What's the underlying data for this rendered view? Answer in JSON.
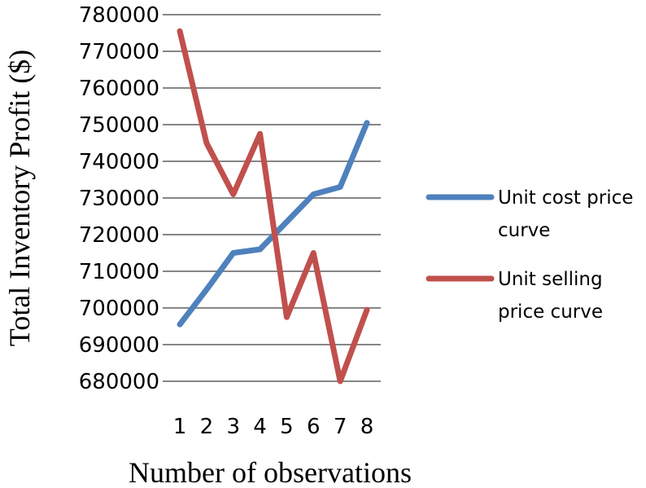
{
  "chart_data": {
    "type": "line",
    "xlabel": "Number of observations",
    "ylabel": "Total Inventory Profit ($)",
    "x": [
      1,
      2,
      3,
      4,
      5,
      6,
      7,
      8
    ],
    "y_ticks": [
      680000,
      690000,
      700000,
      710000,
      720000,
      730000,
      740000,
      750000,
      760000,
      770000,
      780000
    ],
    "ylim": [
      680000,
      780000
    ],
    "grid": "horizontal",
    "legend_position": "right",
    "series": [
      {
        "name_lines": [
          "Unit cost price",
          "curve"
        ],
        "color": "#4f81bd",
        "values": [
          695500,
          705000,
          715000,
          716000,
          723500,
          731000,
          733000,
          750500
        ]
      },
      {
        "name_lines": [
          "Unit selling",
          "price curve"
        ],
        "color": "#c0504d",
        "values": [
          775500,
          745000,
          731000,
          747500,
          697500,
          715000,
          680000,
          699500
        ]
      }
    ]
  }
}
